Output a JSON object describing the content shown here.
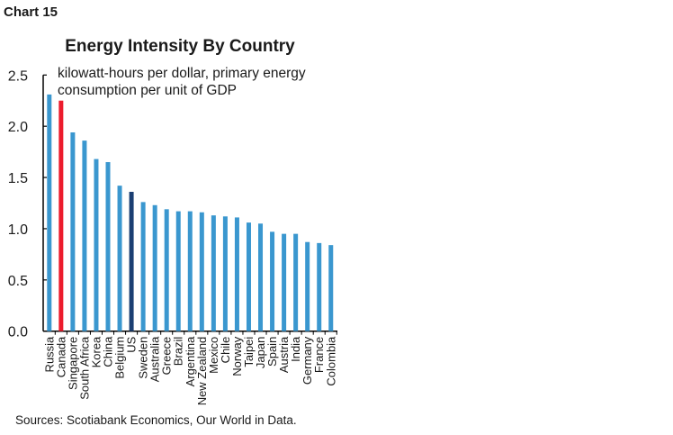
{
  "chart_label": "Chart 15",
  "chart_data": {
    "type": "bar",
    "title": "Energy Intensity By Country",
    "ylabel": "kilowatt-hours per dollar, primary energy consumption per unit of GDP",
    "xlabel": "",
    "ylim": [
      0,
      2.5
    ],
    "yticks": [
      "0.0",
      "0.5",
      "1.0",
      "1.5",
      "2.0",
      "2.5"
    ],
    "grid": false,
    "categories": [
      "Russia",
      "Canada",
      "Singapore",
      "South Africa",
      "Korea",
      "China",
      "Belgium",
      "US",
      "Sweden",
      "Australia",
      "Greece",
      "Brazil",
      "Argentina",
      "New Zealand",
      "Mexico",
      "Chile",
      "Norway",
      "Taipei",
      "Japan",
      "Spain",
      "Austria",
      "India",
      "Germany",
      "France",
      "Colombia"
    ],
    "values": [
      2.31,
      2.25,
      1.94,
      1.86,
      1.68,
      1.65,
      1.42,
      1.36,
      1.26,
      1.23,
      1.19,
      1.17,
      1.17,
      1.16,
      1.13,
      1.12,
      1.11,
      1.06,
      1.05,
      0.97,
      0.95,
      0.95,
      0.87,
      0.86,
      0.84
    ],
    "colors": {
      "default": "#3a97cf",
      "Canada": "#ec1c2d",
      "US": "#1b3f73"
    }
  },
  "source": "Sources: Scotiabank Economics, Our World in Data."
}
